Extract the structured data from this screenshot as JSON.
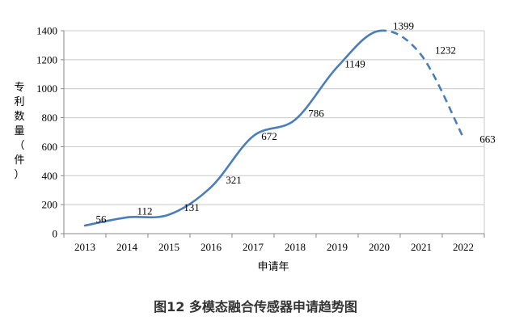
{
  "chart_data": {
    "type": "line",
    "title": "",
    "caption": "图12  多模态融合传感器申请趋势图",
    "xlabel": "申请年",
    "ylabel": "专利数量（件）",
    "ylim": [
      0,
      1400
    ],
    "yticks": [
      0,
      200,
      400,
      600,
      800,
      1000,
      1200,
      1400
    ],
    "grid": true,
    "categories": [
      "2013",
      "2014",
      "2015",
      "2016",
      "2017",
      "2018",
      "2019",
      "2020",
      "2021",
      "2022"
    ],
    "series": [
      {
        "values": [
          56,
          112,
          131,
          321,
          672,
          786,
          1149,
          1399,
          1232,
          663
        ],
        "color": "#4a7ebb",
        "dashed_from_index": 7
      }
    ]
  }
}
